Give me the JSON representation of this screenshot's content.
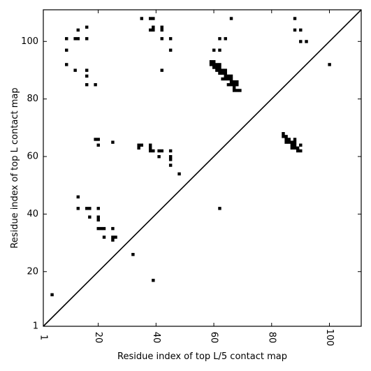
{
  "chart_data": {
    "type": "scatter",
    "title": "",
    "xlabel": "Residue index of top L/5 contact map",
    "ylabel": "Residue index of top L contact map",
    "xlim": [
      1,
      111
    ],
    "ylim": [
      1,
      111
    ],
    "x_ticks": [
      1,
      20,
      40,
      60,
      80,
      100
    ],
    "y_ticks": [
      1,
      20,
      40,
      60,
      80,
      100
    ],
    "grid": false,
    "diagonal_line": true,
    "marker_color": "#000000",
    "points_upper": [
      [
        9,
        101
      ],
      [
        12,
        101
      ],
      [
        13,
        101
      ],
      [
        16,
        101
      ],
      [
        13,
        104
      ],
      [
        16,
        105
      ],
      [
        9,
        97
      ],
      [
        9,
        92
      ],
      [
        12,
        90
      ],
      [
        16,
        90
      ],
      [
        16,
        88
      ],
      [
        16,
        85
      ],
      [
        19,
        85
      ],
      [
        35,
        108
      ],
      [
        38,
        108
      ],
      [
        39,
        108
      ],
      [
        38,
        104
      ],
      [
        39,
        104
      ],
      [
        39,
        105
      ],
      [
        42,
        104
      ],
      [
        42,
        105
      ],
      [
        42,
        101
      ],
      [
        45,
        101
      ],
      [
        45,
        97
      ],
      [
        42,
        90
      ],
      [
        66,
        108
      ],
      [
        60,
        97
      ],
      [
        62,
        97
      ],
      [
        62,
        101
      ],
      [
        64,
        101
      ],
      [
        88,
        108
      ],
      [
        88,
        104
      ],
      [
        90,
        104
      ],
      [
        90,
        100
      ],
      [
        92,
        100
      ],
      [
        100,
        92
      ],
      [
        59,
        92
      ],
      [
        59,
        93
      ],
      [
        60,
        91
      ],
      [
        60,
        92
      ],
      [
        60,
        93
      ],
      [
        61,
        90
      ],
      [
        61,
        91
      ],
      [
        61,
        92
      ],
      [
        62,
        89
      ],
      [
        62,
        90
      ],
      [
        62,
        91
      ],
      [
        62,
        92
      ],
      [
        63,
        89
      ],
      [
        63,
        90
      ],
      [
        64,
        88
      ],
      [
        64,
        89
      ],
      [
        64,
        90
      ],
      [
        63,
        87
      ],
      [
        64,
        87
      ],
      [
        65,
        87
      ],
      [
        65,
        88
      ],
      [
        66,
        86
      ],
      [
        66,
        87
      ],
      [
        66,
        88
      ],
      [
        65,
        85
      ],
      [
        66,
        85
      ],
      [
        67,
        84
      ],
      [
        67,
        85
      ],
      [
        67,
        86
      ],
      [
        68,
        85
      ],
      [
        68,
        86
      ],
      [
        67,
        83
      ],
      [
        68,
        83
      ],
      [
        69,
        83
      ]
    ],
    "points_lower": [
      [
        4,
        12
      ],
      [
        13,
        46
      ],
      [
        13,
        42
      ],
      [
        16,
        42
      ],
      [
        17,
        42
      ],
      [
        17,
        39
      ],
      [
        20,
        42
      ],
      [
        20,
        39
      ],
      [
        20,
        38
      ],
      [
        20,
        35
      ],
      [
        21,
        35
      ],
      [
        22,
        35
      ],
      [
        25,
        35
      ],
      [
        22,
        32
      ],
      [
        25,
        31
      ],
      [
        25,
        32
      ],
      [
        26,
        32
      ],
      [
        32,
        26
      ],
      [
        39,
        17
      ],
      [
        62,
        42
      ],
      [
        48,
        54
      ],
      [
        19,
        66
      ],
      [
        20,
        66
      ],
      [
        20,
        64
      ],
      [
        25,
        65
      ],
      [
        34,
        63
      ],
      [
        34,
        64
      ],
      [
        35,
        64
      ],
      [
        38,
        62
      ],
      [
        38,
        63
      ],
      [
        38,
        64
      ],
      [
        39,
        62
      ],
      [
        41,
        62
      ],
      [
        42,
        62
      ],
      [
        41,
        60
      ],
      [
        45,
        62
      ],
      [
        45,
        60
      ],
      [
        45,
        59
      ],
      [
        45,
        57
      ],
      [
        84,
        67
      ],
      [
        84,
        68
      ],
      [
        85,
        66
      ],
      [
        85,
        67
      ],
      [
        86,
        65
      ],
      [
        86,
        66
      ],
      [
        85,
        65
      ],
      [
        87,
        65
      ],
      [
        88,
        65
      ],
      [
        88,
        66
      ],
      [
        87,
        64
      ],
      [
        88,
        64
      ],
      [
        88,
        63
      ],
      [
        87,
        63
      ],
      [
        89,
        63
      ],
      [
        89,
        62
      ],
      [
        90,
        62
      ],
      [
        90,
        64
      ]
    ]
  }
}
